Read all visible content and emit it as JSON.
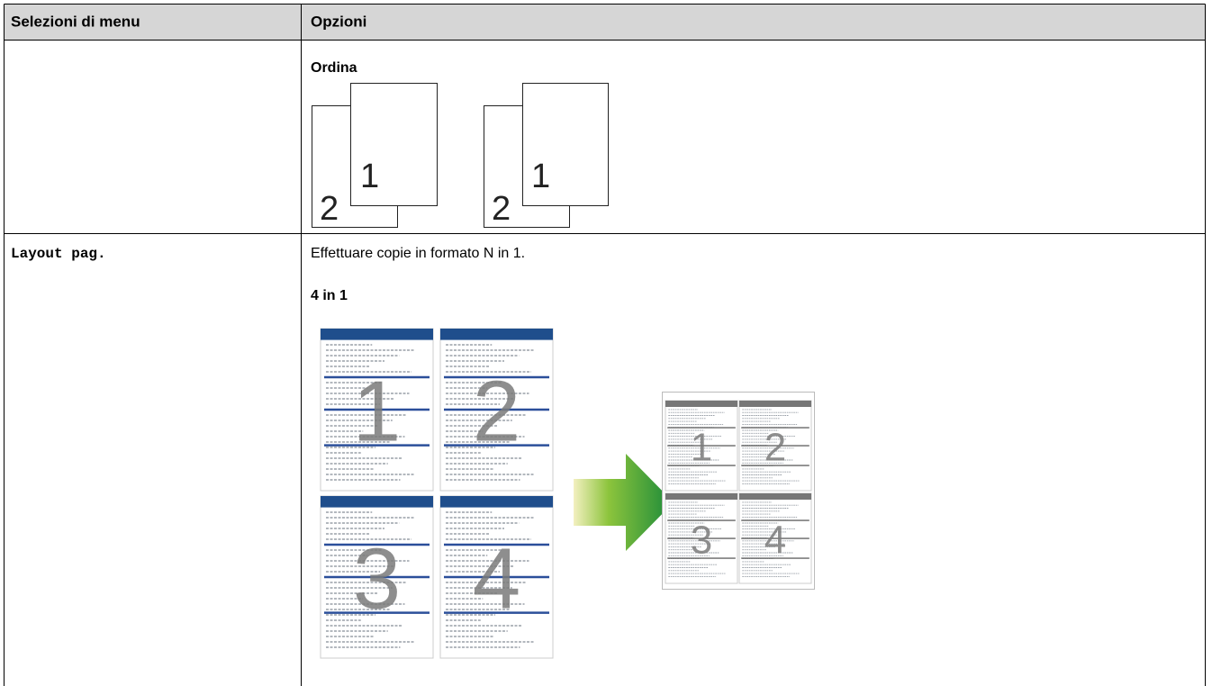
{
  "table": {
    "header": [
      "Selezioni di menu",
      "Opzioni"
    ],
    "rows": [
      {
        "options": {
          "heading": "Ordina",
          "figure_labels": [
            "2",
            "1",
            "2",
            "1"
          ]
        }
      },
      {
        "menu": "Layout pag.",
        "options": {
          "description": "Effettuare copie in formato N in 1.",
          "heading": "4 in 1",
          "figure_labels": [
            "1",
            "2",
            "3",
            "4",
            "1",
            "2",
            "3",
            "4"
          ]
        }
      }
    ]
  }
}
